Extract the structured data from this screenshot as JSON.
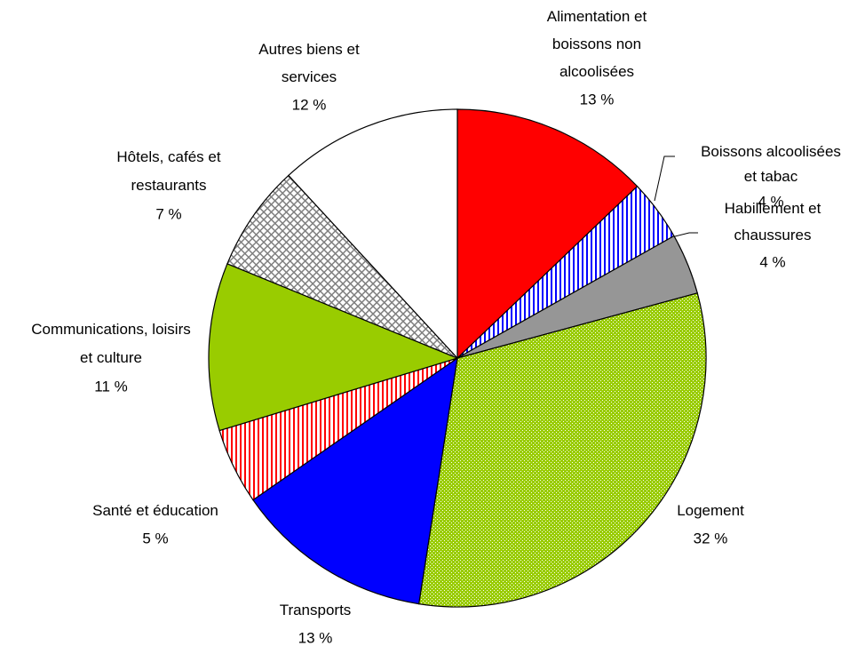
{
  "chart_data": {
    "type": "pie",
    "categories": [
      "Alimentation et boissons non alcoolisées",
      "Boissons alcoolisées et tabac",
      "Habillement et chaussures",
      "Logement",
      "Transports",
      "Santé et éducation",
      "Communications, loisirs et culture",
      "Hôtels, cafés et restaurants",
      "Autres biens et services"
    ],
    "values": [
      13,
      4,
      4,
      32,
      13,
      5,
      11,
      7,
      12
    ],
    "value_labels": [
      "13 %",
      "4 %",
      "4 %",
      "32 %",
      "13 %",
      "5 %",
      "11 %",
      "7 %",
      "12 %"
    ],
    "colors": [
      "#ff0000",
      "#0000ff",
      "#969696",
      "#99cc00",
      "#0000ff",
      "#ff0000",
      "#99cc00",
      "#808080",
      "#ffffff"
    ],
    "patterns": [
      "solid",
      "vertical-lines",
      "solid",
      "grid",
      "solid",
      "vertical-lines",
      "solid",
      "checker",
      "solid"
    ]
  }
}
